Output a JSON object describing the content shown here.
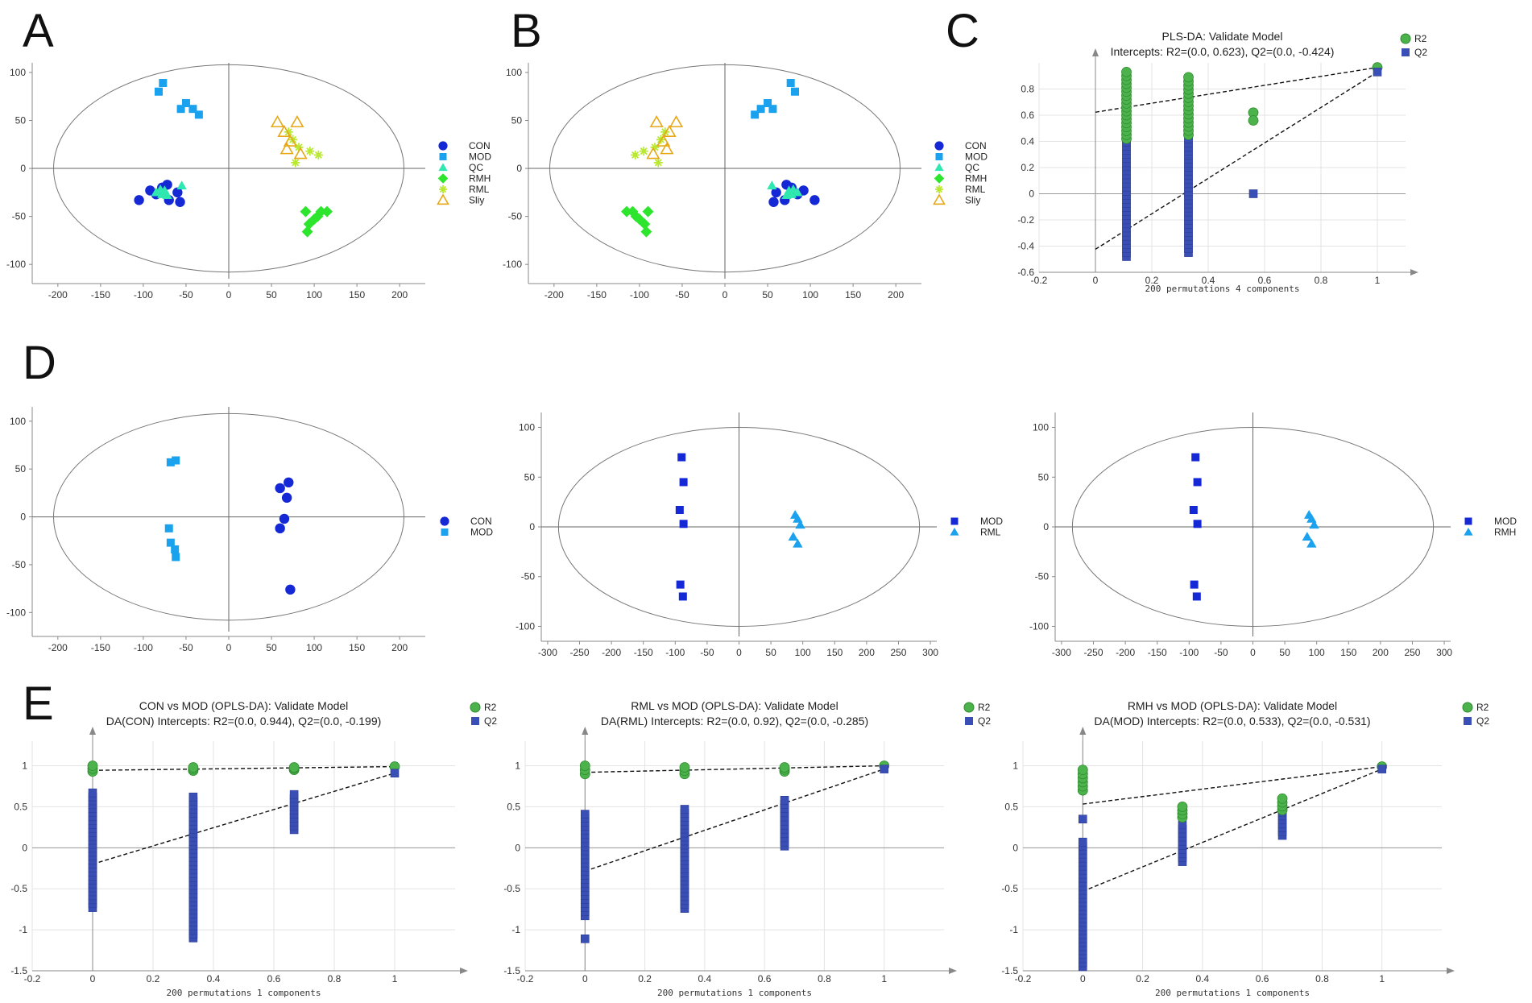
{
  "figure": {
    "panel_letters": [
      "A",
      "B",
      "C",
      "D",
      "E"
    ]
  },
  "colors": {
    "CON": "#1428d6",
    "MOD": "#1aa2ee",
    "QC": "#2ee8b0",
    "RMH": "#2ee52e",
    "RML": "#b8e830",
    "Sliy": "#e6a817",
    "R2": "#4cb34c",
    "Q2": "#3a4fb5",
    "MOD_dark": "#1428d6",
    "RMH_light": "#1aa2ee"
  },
  "chart_data": [
    {
      "id": "A",
      "type": "scatter",
      "xlim": [
        -230,
        230
      ],
      "ylim": [
        -120,
        110
      ],
      "xticks": [
        -200,
        -150,
        -100,
        -50,
        0,
        50,
        100,
        150,
        200
      ],
      "yticks": [
        -100,
        -50,
        0,
        50,
        100
      ],
      "ellipse": {
        "rx": 205,
        "ry": 108
      },
      "legend": [
        "CON",
        "MOD",
        "QC",
        "RMH",
        "RML",
        "Sliy"
      ],
      "series": [
        {
          "name": "CON",
          "marker": "circle",
          "color": "CON",
          "points": [
            [
              -105,
              -33
            ],
            [
              -92,
              -23
            ],
            [
              -85,
              -27
            ],
            [
              -78,
              -20
            ],
            [
              -72,
              -17
            ],
            [
              -60,
              -25
            ],
            [
              -57,
              -35
            ],
            [
              -70,
              -33
            ]
          ]
        },
        {
          "name": "MOD",
          "marker": "square",
          "color": "MOD",
          "points": [
            [
              -82,
              80
            ],
            [
              -77,
              89
            ],
            [
              -56,
              62
            ],
            [
              -50,
              68
            ],
            [
              -42,
              62
            ],
            [
              -35,
              56
            ]
          ]
        },
        {
          "name": "QC",
          "marker": "triangle",
          "color": "QC",
          "points": [
            [
              -85,
              -25
            ],
            [
              -80,
              -22
            ],
            [
              -78,
              -27
            ],
            [
              -75,
              -23
            ],
            [
              -72,
              -28
            ],
            [
              -55,
              -18
            ]
          ]
        },
        {
          "name": "RMH",
          "marker": "diamond",
          "color": "RMH",
          "points": [
            [
              90,
              -45
            ],
            [
              94,
              -58
            ],
            [
              92,
              -66
            ],
            [
              100,
              -53
            ],
            [
              104,
              -50
            ],
            [
              108,
              -45
            ],
            [
              115,
              -45
            ]
          ]
        },
        {
          "name": "RML",
          "marker": "star",
          "color": "RML",
          "points": [
            [
              70,
              38
            ],
            [
              75,
              30
            ],
            [
              82,
              22
            ],
            [
              95,
              18
            ],
            [
              105,
              14
            ],
            [
              78,
              6
            ]
          ]
        },
        {
          "name": "Sliy",
          "marker": "tri-open",
          "color": "Sliy",
          "points": [
            [
              57,
              48
            ],
            [
              65,
              38
            ],
            [
              72,
              28
            ],
            [
              68,
              20
            ],
            [
              80,
              48
            ],
            [
              84,
              15
            ]
          ]
        }
      ]
    },
    {
      "id": "B",
      "type": "scatter",
      "xlim": [
        -230,
        230
      ],
      "ylim": [
        -120,
        110
      ],
      "xticks": [
        -200,
        -150,
        -100,
        -50,
        0,
        50,
        100,
        150,
        200
      ],
      "yticks": [
        -100,
        -50,
        0,
        50,
        100
      ],
      "ellipse": {
        "rx": 205,
        "ry": 108
      },
      "legend": [
        "CON",
        "MOD",
        "QC",
        "RMH",
        "RML",
        "Sliy"
      ],
      "series": [
        {
          "name": "CON",
          "marker": "circle",
          "color": "CON",
          "points": [
            [
              105,
              -33
            ],
            [
              92,
              -23
            ],
            [
              85,
              -27
            ],
            [
              78,
              -20
            ],
            [
              72,
              -17
            ],
            [
              60,
              -25
            ],
            [
              57,
              -35
            ],
            [
              70,
              -33
            ]
          ]
        },
        {
          "name": "MOD",
          "marker": "square",
          "color": "MOD",
          "points": [
            [
              82,
              80
            ],
            [
              77,
              89
            ],
            [
              56,
              62
            ],
            [
              50,
              68
            ],
            [
              42,
              62
            ],
            [
              35,
              56
            ]
          ]
        },
        {
          "name": "QC",
          "marker": "triangle",
          "color": "QC",
          "points": [
            [
              85,
              -25
            ],
            [
              80,
              -22
            ],
            [
              78,
              -27
            ],
            [
              75,
              -23
            ],
            [
              72,
              -28
            ],
            [
              55,
              -18
            ]
          ]
        },
        {
          "name": "RMH",
          "marker": "diamond",
          "color": "RMH",
          "points": [
            [
              -90,
              -45
            ],
            [
              -94,
              -58
            ],
            [
              -92,
              -66
            ],
            [
              -100,
              -53
            ],
            [
              -104,
              -50
            ],
            [
              -108,
              -45
            ],
            [
              -115,
              -45
            ]
          ]
        },
        {
          "name": "RML",
          "marker": "star",
          "color": "RML",
          "points": [
            [
              -70,
              38
            ],
            [
              -75,
              30
            ],
            [
              -82,
              22
            ],
            [
              -95,
              18
            ],
            [
              -105,
              14
            ],
            [
              -78,
              6
            ]
          ]
        },
        {
          "name": "Sliy",
          "marker": "tri-open",
          "color": "Sliy",
          "points": [
            [
              -57,
              48
            ],
            [
              -65,
              38
            ],
            [
              -72,
              28
            ],
            [
              -68,
              20
            ],
            [
              -80,
              48
            ],
            [
              -84,
              15
            ]
          ]
        }
      ]
    },
    {
      "id": "C",
      "type": "permutation",
      "title": "PLS-DA: Validate Model",
      "subtitle": "Intercepts: R2=(0.0, 0.623), Q2=(0.0, -0.424)",
      "xlabel": "200 permutations 4 components",
      "xlim": [
        -0.2,
        1.1
      ],
      "ylim": [
        -0.6,
        1.0
      ],
      "xticks": [
        -0.2,
        0,
        0.2,
        0.4,
        0.6,
        0.8,
        1
      ],
      "yticks": [
        -0.6,
        -0.4,
        -0.2,
        0,
        0.2,
        0.4,
        0.6,
        0.8
      ],
      "legend": [
        "R2",
        "Q2"
      ],
      "r2_intercept": 0.623,
      "q2_intercept": -0.424,
      "r2_original": 0.965,
      "q2_original": 0.93,
      "r2_columns": [
        {
          "x": 0.11,
          "min": 0.42,
          "max": 0.93
        },
        {
          "x": 0.33,
          "min": 0.45,
          "max": 0.89
        }
      ],
      "q2_columns": [
        {
          "x": 0.11,
          "min": -0.48,
          "max": 0.55
        },
        {
          "x": 0.33,
          "min": -0.45,
          "max": 0.45
        }
      ],
      "r2_extra": [
        [
          0.56,
          0.62
        ],
        [
          0.56,
          0.56
        ]
      ],
      "q2_extra": [
        [
          0.56,
          0.0
        ]
      ]
    },
    {
      "id": "D1",
      "type": "scatter",
      "xlim": [
        -230,
        230
      ],
      "ylim": [
        -125,
        115
      ],
      "xticks": [
        -200,
        -150,
        -100,
        -50,
        0,
        50,
        100,
        150,
        200
      ],
      "yticks": [
        -100,
        -50,
        0,
        50,
        100
      ],
      "ellipse": {
        "rx": 205,
        "ry": 108
      },
      "legend": [
        "CON",
        "MOD"
      ],
      "series": [
        {
          "name": "CON",
          "marker": "circle",
          "color": "CON",
          "points": [
            [
              60,
              30
            ],
            [
              70,
              36
            ],
            [
              68,
              20
            ],
            [
              65,
              -2
            ],
            [
              60,
              -12
            ],
            [
              72,
              -76
            ]
          ]
        },
        {
          "name": "MOD",
          "marker": "square",
          "color": "MOD",
          "points": [
            [
              -68,
              57
            ],
            [
              -62,
              59
            ],
            [
              -70,
              -12
            ],
            [
              -68,
              -27
            ],
            [
              -63,
              -34
            ],
            [
              -62,
              -42
            ]
          ]
        }
      ]
    },
    {
      "id": "D2",
      "type": "scatter",
      "xlim": [
        -310,
        310
      ],
      "ylim": [
        -115,
        115
      ],
      "xticks": [
        -300,
        -250,
        -200,
        -150,
        -100,
        -50,
        0,
        50,
        100,
        150,
        200,
        250,
        300
      ],
      "yticks": [
        -100,
        -50,
        0,
        50,
        100
      ],
      "ellipse": {
        "rx": 283,
        "ry": 100
      },
      "legend": [
        "MOD",
        "RML"
      ],
      "series": [
        {
          "name": "MOD",
          "marker": "square",
          "color": "MOD_dark",
          "points": [
            [
              -90,
              70
            ],
            [
              -87,
              45
            ],
            [
              -93,
              17
            ],
            [
              -87,
              3
            ],
            [
              -92,
              -58
            ],
            [
              -88,
              -70
            ]
          ]
        },
        {
          "name": "RML",
          "marker": "triangle",
          "color": "RMH_light",
          "points": [
            [
              88,
              12
            ],
            [
              92,
              8
            ],
            [
              96,
              2
            ],
            [
              85,
              -10
            ],
            [
              92,
              -17
            ]
          ]
        }
      ]
    },
    {
      "id": "D3",
      "type": "scatter",
      "xlim": [
        -310,
        310
      ],
      "ylim": [
        -115,
        115
      ],
      "xticks": [
        -300,
        -250,
        -200,
        -150,
        -100,
        -50,
        0,
        50,
        100,
        150,
        200,
        250,
        300
      ],
      "yticks": [
        -100,
        -50,
        0,
        50,
        100
      ],
      "ellipse": {
        "rx": 283,
        "ry": 100
      },
      "legend": [
        "MOD",
        "RMH"
      ],
      "series": [
        {
          "name": "MOD",
          "marker": "square",
          "color": "MOD_dark",
          "points": [
            [
              -90,
              70
            ],
            [
              -87,
              45
            ],
            [
              -93,
              17
            ],
            [
              -87,
              3
            ],
            [
              -92,
              -58
            ],
            [
              -88,
              -70
            ]
          ]
        },
        {
          "name": "RMH",
          "marker": "triangle",
          "color": "RMH_light",
          "points": [
            [
              88,
              12
            ],
            [
              92,
              8
            ],
            [
              96,
              2
            ],
            [
              85,
              -10
            ],
            [
              92,
              -17
            ]
          ]
        }
      ]
    },
    {
      "id": "E1",
      "type": "permutation",
      "title": "CON vs MOD (OPLS-DA): Validate Model",
      "subtitle": "DA(CON) Intercepts: R2=(0.0, 0.944), Q2=(0.0, -0.199)",
      "xlabel": "200 permutations 1 components",
      "xlim": [
        -0.2,
        1.2
      ],
      "ylim": [
        -1.5,
        1.3
      ],
      "xticks": [
        -0.2,
        0,
        0.2,
        0.4,
        0.6,
        0.8,
        1
      ],
      "yticks": [
        -1.5,
        -1,
        -0.5,
        0,
        0.5,
        1
      ],
      "legend": [
        "R2",
        "Q2"
      ],
      "r2_intercept": 0.944,
      "q2_intercept": -0.199,
      "r2_original": 0.99,
      "q2_original": 0.91,
      "r2_columns": [
        {
          "x": 0,
          "min": 0.93,
          "max": 1.0
        },
        {
          "x": 0.333,
          "min": 0.94,
          "max": 0.98
        },
        {
          "x": 0.667,
          "min": 0.95,
          "max": 0.98
        }
      ],
      "q2_columns": [
        {
          "x": 0,
          "min": -0.73,
          "max": 0.67
        },
        {
          "x": 0.333,
          "min": -1.1,
          "max": 0.62
        },
        {
          "x": 0.667,
          "min": 0.22,
          "max": 0.65
        }
      ],
      "r2_extra": [],
      "q2_extra": []
    },
    {
      "id": "E2",
      "type": "permutation",
      "title": "RML vs MOD (OPLS-DA): Validate Model",
      "subtitle": "DA(RML) Intercepts: R2=(0.0, 0.92), Q2=(0.0, -0.285)",
      "xlabel": "200 permutations 1 components",
      "xlim": [
        -0.2,
        1.2
      ],
      "ylim": [
        -1.5,
        1.3
      ],
      "xticks": [
        -0.2,
        0,
        0.2,
        0.4,
        0.6,
        0.8,
        1
      ],
      "yticks": [
        -1.5,
        -1,
        -0.5,
        0,
        0.5,
        1
      ],
      "legend": [
        "R2",
        "Q2"
      ],
      "r2_intercept": 0.92,
      "q2_intercept": -0.285,
      "r2_original": 1.0,
      "q2_original": 0.96,
      "r2_columns": [
        {
          "x": 0,
          "min": 0.9,
          "max": 1.0
        },
        {
          "x": 0.333,
          "min": 0.9,
          "max": 0.98
        },
        {
          "x": 0.667,
          "min": 0.93,
          "max": 0.98
        }
      ],
      "q2_columns": [
        {
          "x": 0,
          "min": -0.83,
          "max": 0.41
        },
        {
          "x": 0.333,
          "min": -0.74,
          "max": 0.47
        },
        {
          "x": 0.667,
          "min": 0.02,
          "max": 0.58
        }
      ],
      "r2_extra": [],
      "q2_extra": [
        [
          0,
          -1.11
        ]
      ]
    },
    {
      "id": "E3",
      "type": "permutation",
      "title": "RMH vs MOD (OPLS-DA): Validate Model",
      "subtitle": "DA(MOD) Intercepts: R2=(0.0, 0.533), Q2=(0.0, -0.531)",
      "xlabel": "200 permutations 1 components",
      "xlim": [
        -0.2,
        1.2
      ],
      "ylim": [
        -1.5,
        1.3
      ],
      "xticks": [
        -0.2,
        0,
        0.2,
        0.4,
        0.6,
        0.8,
        1
      ],
      "yticks": [
        -1.5,
        -1,
        -0.5,
        0,
        0.5,
        1
      ],
      "legend": [
        "R2",
        "Q2"
      ],
      "r2_intercept": 0.533,
      "q2_intercept": -0.531,
      "r2_original": 0.99,
      "q2_original": 0.96,
      "r2_columns": [
        {
          "x": 0,
          "min": 0.7,
          "max": 0.95
        },
        {
          "x": 0.333,
          "min": 0.37,
          "max": 0.5
        },
        {
          "x": 0.667,
          "min": 0.46,
          "max": 0.6
        }
      ],
      "q2_columns": [
        {
          "x": 0,
          "min": -1.45,
          "max": 0.07
        },
        {
          "x": 0.333,
          "min": -0.17,
          "max": 0.28
        },
        {
          "x": 0.667,
          "min": 0.15,
          "max": 0.53
        }
      ],
      "r2_extra": [],
      "q2_extra": [
        [
          0,
          0.35
        ]
      ]
    }
  ]
}
